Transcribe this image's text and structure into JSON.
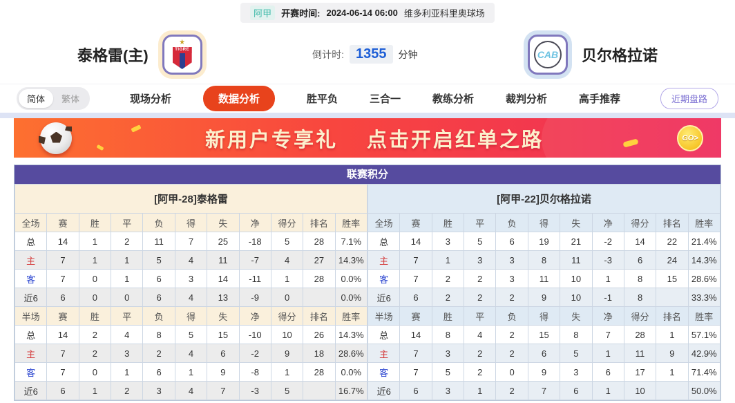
{
  "topbar": {
    "league": "阿甲",
    "kickoff_label": "开赛时间:",
    "kickoff_time": "2024-06-14 06:00",
    "venue": "维多利亚科里奥球场"
  },
  "header": {
    "home_team": "泰格雷(主)",
    "home_logo_text": "TIGRE",
    "away_team": "贝尔格拉诺",
    "away_logo_text": "CAB",
    "countdown_label": "倒计时:",
    "countdown_value": "1355",
    "countdown_unit": "分钟"
  },
  "nav": {
    "lang_simplified": "简体",
    "lang_traditional": "繁体",
    "items": [
      {
        "label": "现场分析",
        "active": false
      },
      {
        "label": "数据分析",
        "active": true
      },
      {
        "label": "胜平负",
        "active": false
      },
      {
        "label": "三合一",
        "active": false
      },
      {
        "label": "教练分析",
        "active": false
      },
      {
        "label": "裁判分析",
        "active": false
      },
      {
        "label": "高手推荐",
        "active": false
      }
    ],
    "recent_button": "近期盘路"
  },
  "banner": {
    "slogan1": "新用户专享礼",
    "slogan2": "点击开启红单之路",
    "go_label": "GO>"
  },
  "table": {
    "title": "联赛积分",
    "home": {
      "team_header": "[阿甲-28]泰格雷",
      "full_header": [
        "全场",
        "赛",
        "胜",
        "平",
        "负",
        "得",
        "失",
        "净",
        "得分",
        "排名",
        "胜率"
      ],
      "full_rows": [
        [
          "总",
          "14",
          "1",
          "2",
          "11",
          "7",
          "25",
          "-18",
          "5",
          "28",
          "7.1%"
        ],
        [
          "主",
          "7",
          "1",
          "1",
          "5",
          "4",
          "11",
          "-7",
          "4",
          "27",
          "14.3%"
        ],
        [
          "客",
          "7",
          "0",
          "1",
          "6",
          "3",
          "14",
          "-11",
          "1",
          "28",
          "0.0%"
        ],
        [
          "近6",
          "6",
          "0",
          "0",
          "6",
          "4",
          "13",
          "-9",
          "0",
          "",
          "0.0%"
        ]
      ],
      "half_header": [
        "半场",
        "赛",
        "胜",
        "平",
        "负",
        "得",
        "失",
        "净",
        "得分",
        "排名",
        "胜率"
      ],
      "half_rows": [
        [
          "总",
          "14",
          "2",
          "4",
          "8",
          "5",
          "15",
          "-10",
          "10",
          "26",
          "14.3%"
        ],
        [
          "主",
          "7",
          "2",
          "3",
          "2",
          "4",
          "6",
          "-2",
          "9",
          "18",
          "28.6%"
        ],
        [
          "客",
          "7",
          "0",
          "1",
          "6",
          "1",
          "9",
          "-8",
          "1",
          "28",
          "0.0%"
        ],
        [
          "近6",
          "6",
          "1",
          "2",
          "3",
          "4",
          "7",
          "-3",
          "5",
          "",
          "16.7%"
        ]
      ]
    },
    "away": {
      "team_header": "[阿甲-22]贝尔格拉诺",
      "full_header": [
        "全场",
        "赛",
        "胜",
        "平",
        "负",
        "得",
        "失",
        "净",
        "得分",
        "排名",
        "胜率"
      ],
      "full_rows": [
        [
          "总",
          "14",
          "3",
          "5",
          "6",
          "19",
          "21",
          "-2",
          "14",
          "22",
          "21.4%"
        ],
        [
          "主",
          "7",
          "1",
          "3",
          "3",
          "8",
          "11",
          "-3",
          "6",
          "24",
          "14.3%"
        ],
        [
          "客",
          "7",
          "2",
          "2",
          "3",
          "11",
          "10",
          "1",
          "8",
          "15",
          "28.6%"
        ],
        [
          "近6",
          "6",
          "2",
          "2",
          "2",
          "9",
          "10",
          "-1",
          "8",
          "",
          "33.3%"
        ]
      ],
      "half_header": [
        "半场",
        "赛",
        "胜",
        "平",
        "负",
        "得",
        "失",
        "净",
        "得分",
        "排名",
        "胜率"
      ],
      "half_rows": [
        [
          "总",
          "14",
          "8",
          "4",
          "2",
          "15",
          "8",
          "7",
          "28",
          "1",
          "57.1%"
        ],
        [
          "主",
          "7",
          "3",
          "2",
          "2",
          "6",
          "5",
          "1",
          "11",
          "9",
          "42.9%"
        ],
        [
          "客",
          "7",
          "5",
          "2",
          "0",
          "9",
          "3",
          "6",
          "17",
          "1",
          "71.4%"
        ],
        [
          "近6",
          "6",
          "3",
          "1",
          "2",
          "7",
          "6",
          "1",
          "10",
          "",
          "50.0%"
        ]
      ]
    }
  },
  "colors": {
    "accent_red": "#e8431c",
    "title_purple": "#564b9f",
    "home_header_bg": "#faf0dc",
    "away_header_bg": "#dfeaf4",
    "countdown_blue": "#1d5ed6",
    "label_red": "#d43b3b",
    "label_blue": "#2f49d1"
  }
}
